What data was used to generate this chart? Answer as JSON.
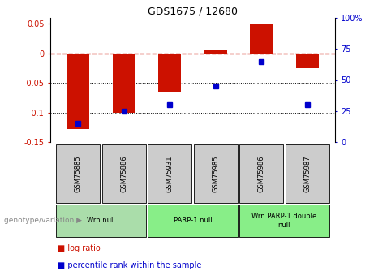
{
  "title": "GDS1675 / 12680",
  "samples": [
    "GSM75885",
    "GSM75886",
    "GSM75931",
    "GSM75985",
    "GSM75986",
    "GSM75987"
  ],
  "log_ratio": [
    -0.128,
    -0.1,
    -0.065,
    0.005,
    0.05,
    -0.025
  ],
  "percentile_rank": [
    15,
    25,
    30,
    45,
    65,
    30
  ],
  "ylim_left": [
    -0.15,
    0.06
  ],
  "ylim_right": [
    0,
    100
  ],
  "yticks_left": [
    -0.15,
    -0.1,
    -0.05,
    0,
    0.05
  ],
  "yticks_right": [
    0,
    25,
    50,
    75,
    100
  ],
  "ytick_labels_left": [
    "-0.15",
    "-0.1",
    "-0.05",
    "0",
    "0.05"
  ],
  "ytick_labels_right": [
    "0",
    "25",
    "50",
    "75",
    "100%"
  ],
  "bar_color": "#cc1100",
  "dot_color": "#0000cc",
  "hline_color": "#cc1100",
  "grid_color": "#000000",
  "xlabel_area_color": "#cccccc",
  "legend_log_ratio_color": "#cc1100",
  "legend_percentile_color": "#0000cc",
  "bar_width": 0.5,
  "group_defs": [
    [
      0,
      1,
      "Wrn null",
      "#aaddaa"
    ],
    [
      2,
      3,
      "PARP-1 null",
      "#88ee88"
    ],
    [
      4,
      5,
      "Wrn PARP-1 double\nnull",
      "#88ee88"
    ]
  ]
}
